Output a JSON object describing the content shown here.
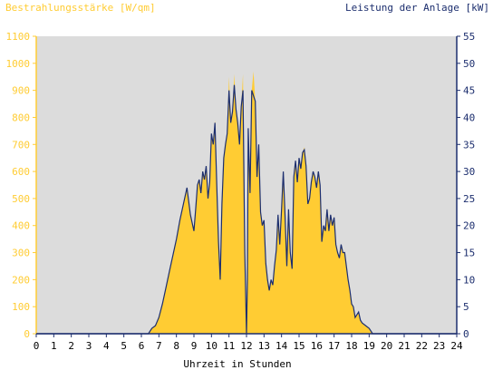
{
  "chart_data": {
    "type": "area",
    "left_axis_title": "Bestrahlungsstärke [W/qm]",
    "right_axis_title": "Leistung der Anlage [kW]",
    "xlabel": "Uhrzeit in Stunden",
    "x_ticks": [
      "0",
      "1",
      "2",
      "3",
      "4",
      "5",
      "6",
      "7",
      "8",
      "9",
      "10",
      "11",
      "12",
      "13",
      "14",
      "15",
      "16",
      "17",
      "18",
      "19",
      "20",
      "21",
      "22",
      "23",
      "24"
    ],
    "y_left_ticks": [
      "0",
      "100",
      "200",
      "300",
      "400",
      "500",
      "600",
      "700",
      "800",
      "900",
      "1000",
      "1100"
    ],
    "y_right_ticks": [
      "0",
      "5",
      "10",
      "15",
      "20",
      "25",
      "30",
      "35",
      "40",
      "45",
      "50",
      "55"
    ],
    "xlim": [
      0,
      24
    ],
    "ylim_left": [
      0,
      1100
    ],
    "ylim_right": [
      0,
      55
    ],
    "colors": {
      "irradiance": "#ffcc33",
      "power": "#1c2e6e",
      "left_axis": "#ffcc33",
      "right_axis": "#1c2e6e",
      "plot_bg": "#dcdcdc"
    },
    "series": [
      {
        "name": "Bestrahlungsstärke",
        "axis": "left",
        "x": [
          0,
          6.4,
          6.6,
          6.8,
          7.0,
          7.2,
          7.4,
          7.6,
          7.8,
          8.0,
          8.2,
          8.4,
          8.6,
          8.8,
          9.0,
          9.1,
          9.2,
          9.3,
          9.4,
          9.5,
          9.6,
          9.7,
          9.8,
          9.9,
          10.0,
          10.1,
          10.2,
          10.3,
          10.4,
          10.5,
          10.6,
          10.7,
          10.8,
          10.9,
          11.0,
          11.1,
          11.2,
          11.3,
          11.4,
          11.5,
          11.6,
          11.7,
          11.8,
          11.9,
          12.0,
          12.05,
          12.1,
          12.2,
          12.3,
          12.4,
          12.5,
          12.6,
          12.7,
          12.8,
          12.9,
          13.0,
          13.1,
          13.2,
          13.3,
          13.4,
          13.5,
          13.6,
          13.7,
          13.8,
          13.9,
          14.0,
          14.1,
          14.2,
          14.3,
          14.4,
          14.5,
          14.6,
          14.7,
          14.8,
          14.9,
          15.0,
          15.1,
          15.2,
          15.3,
          15.4,
          15.5,
          15.6,
          15.7,
          15.8,
          15.9,
          16.0,
          16.1,
          16.2,
          16.3,
          16.4,
          16.5,
          16.6,
          16.7,
          16.8,
          16.9,
          17.0,
          17.1,
          17.2,
          17.3,
          17.4,
          17.5,
          17.6,
          17.7,
          17.8,
          17.9,
          18.0,
          18.1,
          18.2,
          18.3,
          18.4,
          18.5,
          18.6,
          18.8,
          19.0,
          19.2,
          19.4,
          19.6,
          24
        ],
        "values": [
          0,
          0,
          20,
          30,
          60,
          110,
          170,
          230,
          290,
          350,
          420,
          480,
          530,
          440,
          380,
          460,
          550,
          570,
          520,
          600,
          570,
          620,
          500,
          560,
          740,
          700,
          790,
          560,
          340,
          200,
          480,
          650,
          700,
          740,
          950,
          780,
          820,
          960,
          830,
          780,
          700,
          840,
          960,
          300,
          60,
          200,
          760,
          520,
          900,
          970,
          860,
          580,
          700,
          450,
          400,
          420,
          260,
          200,
          160,
          200,
          180,
          250,
          310,
          440,
          330,
          460,
          600,
          440,
          250,
          460,
          300,
          240,
          580,
          640,
          560,
          650,
          610,
          670,
          690,
          620,
          480,
          500,
          560,
          600,
          580,
          540,
          600,
          550,
          340,
          400,
          380,
          460,
          380,
          440,
          400,
          430,
          330,
          300,
          280,
          330,
          300,
          300,
          250,
          200,
          160,
          110,
          100,
          60,
          70,
          80,
          50,
          40,
          30,
          20,
          0,
          0,
          0,
          0
        ]
      },
      {
        "name": "Leistung der Anlage",
        "axis": "right",
        "x": [
          0,
          6.4,
          6.6,
          6.8,
          7.0,
          7.2,
          7.4,
          7.6,
          7.8,
          8.0,
          8.2,
          8.4,
          8.6,
          8.8,
          9.0,
          9.1,
          9.2,
          9.3,
          9.4,
          9.5,
          9.6,
          9.7,
          9.8,
          9.9,
          10.0,
          10.1,
          10.2,
          10.3,
          10.4,
          10.5,
          10.6,
          10.7,
          10.8,
          10.9,
          11.0,
          11.1,
          11.2,
          11.3,
          11.4,
          11.5,
          11.6,
          11.7,
          11.8,
          11.9,
          12.0,
          12.05,
          12.1,
          12.2,
          12.3,
          12.4,
          12.5,
          12.6,
          12.7,
          12.8,
          12.9,
          13.0,
          13.1,
          13.2,
          13.3,
          13.4,
          13.5,
          13.6,
          13.7,
          13.8,
          13.9,
          14.0,
          14.1,
          14.2,
          14.3,
          14.4,
          14.5,
          14.6,
          14.7,
          14.8,
          14.9,
          15.0,
          15.1,
          15.2,
          15.3,
          15.4,
          15.5,
          15.6,
          15.7,
          15.8,
          15.9,
          16.0,
          16.1,
          16.2,
          16.3,
          16.4,
          16.5,
          16.6,
          16.7,
          16.8,
          16.9,
          17.0,
          17.1,
          17.2,
          17.3,
          17.4,
          17.5,
          17.6,
          17.7,
          17.8,
          17.9,
          18.0,
          18.1,
          18.2,
          18.3,
          18.4,
          18.5,
          18.6,
          18.8,
          19.0,
          19.2,
          19.4,
          19.6,
          24
        ],
        "values": [
          0,
          0,
          1,
          1.5,
          3,
          5.5,
          8.5,
          11.5,
          14.5,
          17.5,
          21,
          24,
          27,
          22,
          19,
          23,
          27.5,
          28.5,
          26,
          30,
          28.5,
          31,
          25,
          28,
          37,
          35,
          39,
          28,
          17,
          10,
          24,
          32.5,
          35,
          37,
          45,
          39,
          41,
          46,
          41.5,
          39,
          35,
          42,
          45,
          15,
          0,
          10,
          38,
          26,
          45,
          44,
          43,
          29,
          35,
          22.5,
          20,
          21,
          13,
          10,
          8,
          10,
          9,
          12.5,
          15.5,
          22,
          16.5,
          23,
          30,
          22,
          12.5,
          23,
          15,
          12,
          29,
          32,
          28,
          32.5,
          30.5,
          33.5,
          34,
          31,
          24,
          25,
          28,
          30,
          29,
          27,
          30,
          27.5,
          17,
          20,
          19,
          23,
          19,
          22,
          20,
          21.5,
          16.5,
          15,
          14,
          16.5,
          15,
          15,
          12.5,
          10,
          8,
          5.5,
          5,
          3,
          3.5,
          4,
          2.5,
          2,
          1.5,
          1,
          0,
          0,
          0,
          0
        ]
      }
    ]
  }
}
